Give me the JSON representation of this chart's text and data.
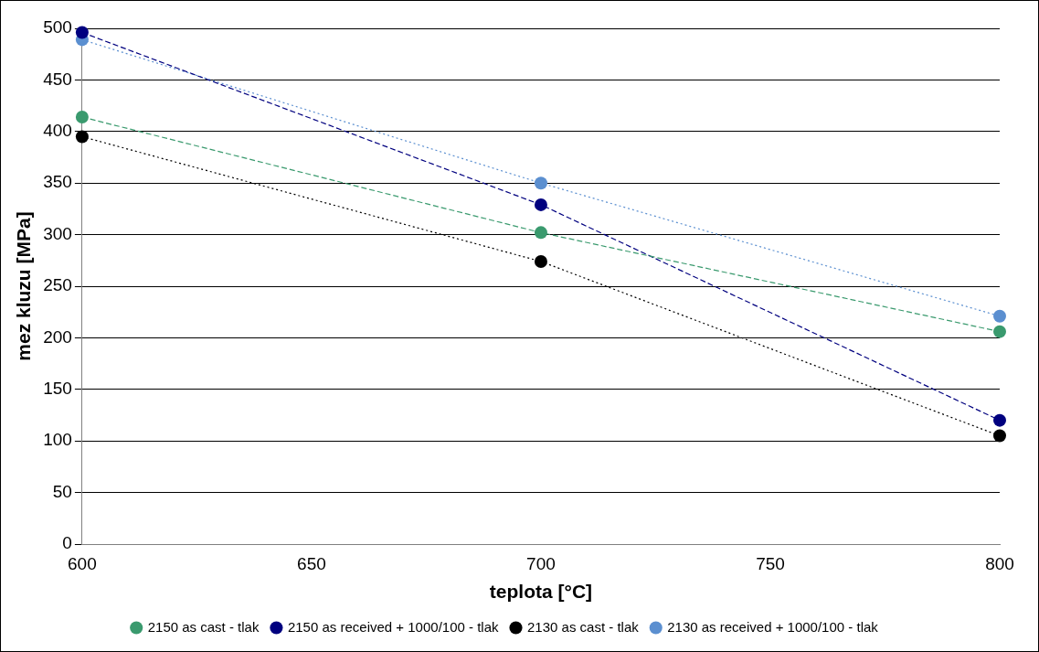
{
  "chart_data": {
    "type": "line",
    "xlabel": "teplota [°C]",
    "ylabel": "mez kluzu [MPa]",
    "x": [
      600,
      700,
      800
    ],
    "series": [
      {
        "name": "2150 as cast - tlak",
        "color": "#3a9a6e",
        "line_style": "dashed",
        "values": [
          414,
          302,
          206
        ]
      },
      {
        "name": "2150 as received + 1000/100 - tlak",
        "color": "#00007f",
        "line_style": "dashed",
        "values": [
          496,
          329,
          120
        ]
      },
      {
        "name": "2130 as cast - tlak",
        "color": "#000000",
        "line_style": "dotted",
        "values": [
          395,
          274,
          105
        ]
      },
      {
        "name": "2130 as received + 1000/100 - tlak",
        "color": "#5b8fd0",
        "line_style": "dotted",
        "values": [
          489,
          350,
          221
        ]
      }
    ],
    "xlim": [
      600,
      800
    ],
    "xticks": [
      600,
      650,
      700,
      750,
      800
    ],
    "ylim": [
      0,
      500
    ],
    "yticks": [
      0,
      50,
      100,
      150,
      200,
      250,
      300,
      350,
      400,
      450,
      500
    ],
    "grid": "y",
    "legend": "bottom",
    "marker": "circle"
  }
}
